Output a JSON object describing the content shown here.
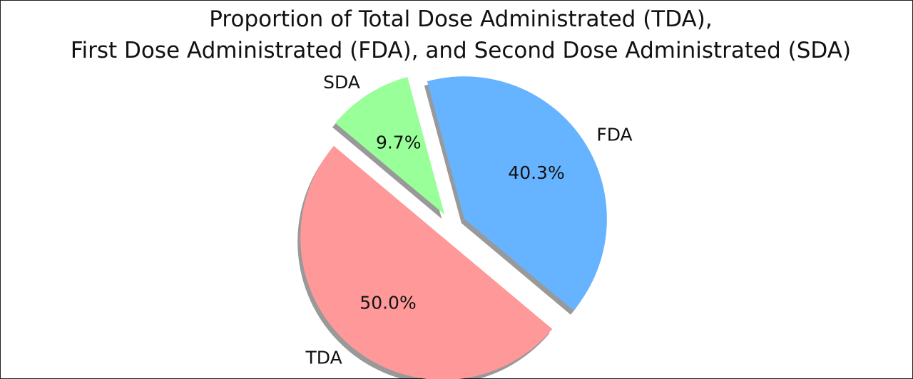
{
  "chart_data": {
    "type": "pie",
    "title_lines": [
      "Proportion of Total Dose Administrated (TDA),",
      "First Dose Administrated (FDA), and Second Dose Administrated (SDA)"
    ],
    "slices": [
      {
        "label": "TDA",
        "value": 50.0,
        "pct_label": "50.0%",
        "color": "#ff9999",
        "exploded": true
      },
      {
        "label": "FDA",
        "value": 40.3,
        "pct_label": "40.3%",
        "color": "#66b3ff",
        "exploded": true
      },
      {
        "label": "SDA",
        "value": 9.7,
        "pct_label": "9.7%",
        "color": "#99ff99",
        "exploded": true
      }
    ],
    "start_angle": 140,
    "shadow": true,
    "legend": "none"
  }
}
